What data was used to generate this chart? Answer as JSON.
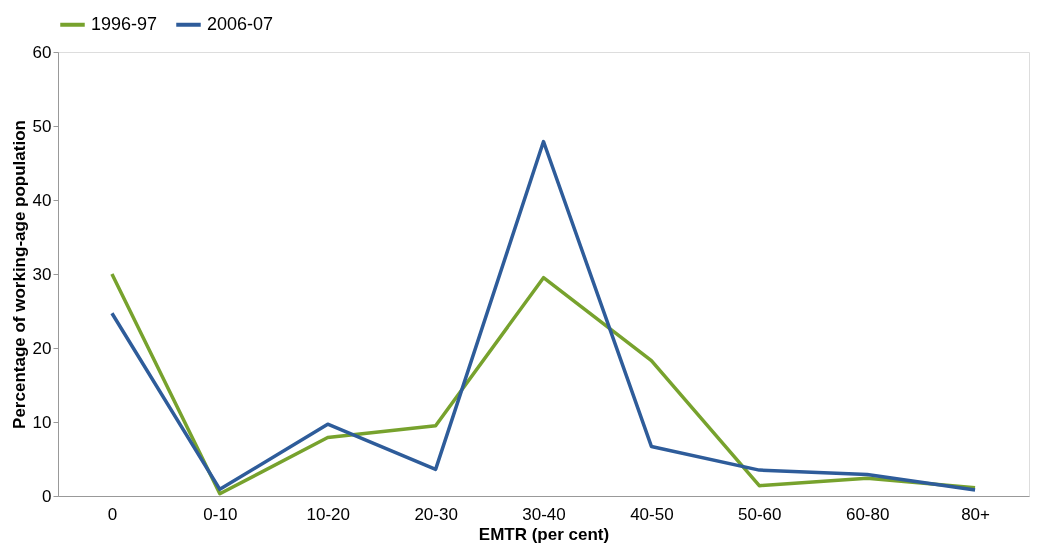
{
  "chart_data": {
    "type": "line",
    "xlabel": "EMTR (per cent)",
    "ylabel": "Percentage of working-age population",
    "categories": [
      "0",
      "0-10",
      "10-20",
      "20-30",
      "30-40",
      "40-50",
      "50-60",
      "60-80",
      "80+"
    ],
    "series": [
      {
        "name": "1996-97",
        "color": "#77a22d",
        "values": [
          30.0,
          0.3,
          7.9,
          9.5,
          29.5,
          18.3,
          1.4,
          2.4,
          1.1
        ]
      },
      {
        "name": "2006-07",
        "color": "#2e5c9a",
        "values": [
          24.7,
          0.9,
          9.7,
          3.6,
          47.9,
          6.7,
          3.5,
          2.9,
          0.8
        ]
      }
    ],
    "ylim": [
      0,
      60
    ],
    "yticks": [
      0,
      10,
      20,
      30,
      40,
      50,
      60
    ],
    "grid": false,
    "legend": "top",
    "marker": "none",
    "line_style": "solid"
  }
}
